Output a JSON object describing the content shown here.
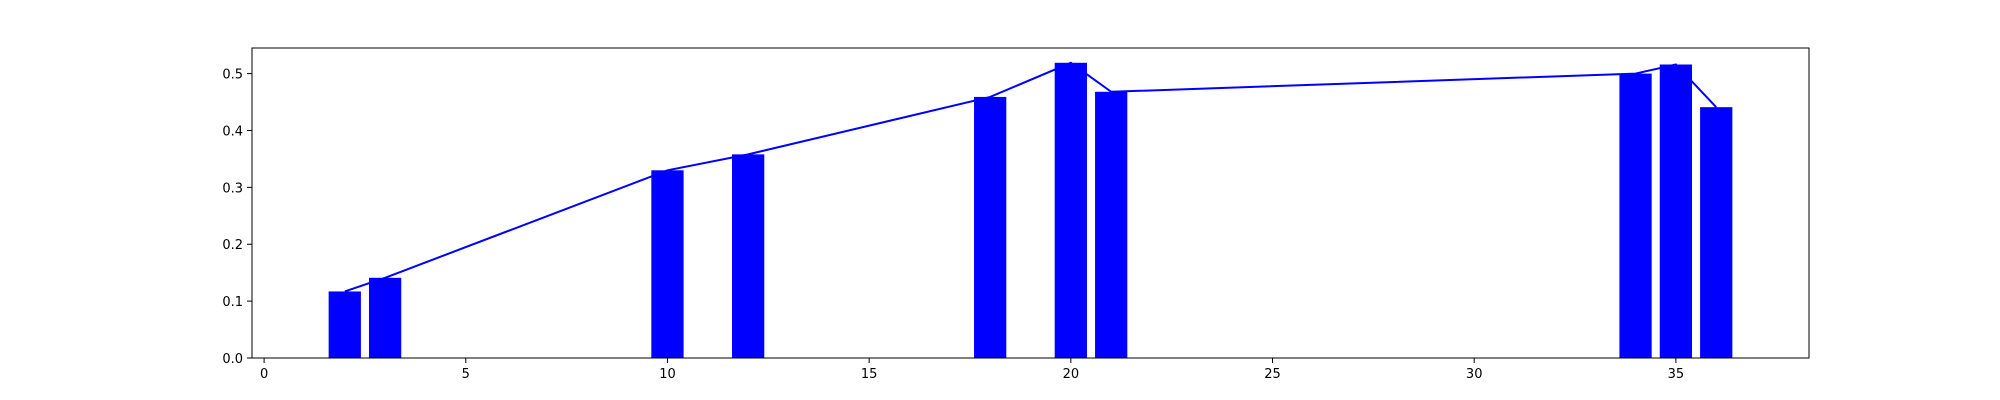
{
  "chart_data": {
    "type": "bar",
    "title": "",
    "xlabel": "",
    "ylabel": "",
    "xlim": [
      -0.3,
      38.3
    ],
    "ylim": [
      0.0,
      0.545
    ],
    "grid": false,
    "legend": "none",
    "bar_width": 0.8,
    "bar_color": "#0000ff",
    "line_color": "#0000ff",
    "x_ticks": [
      0,
      5,
      10,
      15,
      20,
      25,
      30,
      35
    ],
    "x_tick_labels": [
      "0",
      "5",
      "10",
      "15",
      "20",
      "25",
      "30",
      "35"
    ],
    "y_ticks": [
      0.0,
      0.1,
      0.2,
      0.3,
      0.4,
      0.5
    ],
    "y_tick_labels": [
      "0.0",
      "0.1",
      "0.2",
      "0.3",
      "0.4",
      "0.5"
    ],
    "x": [
      2,
      3,
      10,
      12,
      18,
      20,
      21,
      34,
      35,
      36
    ],
    "values": [
      0.117,
      0.141,
      0.33,
      0.358,
      0.459,
      0.519,
      0.468,
      0.5,
      0.516,
      0.441
    ],
    "line_overlay": {
      "x": [
        2,
        3,
        10,
        12,
        18,
        20,
        21,
        34,
        35,
        36
      ],
      "values": [
        0.117,
        0.141,
        0.33,
        0.358,
        0.459,
        0.519,
        0.468,
        0.5,
        0.516,
        0.441
      ]
    }
  }
}
